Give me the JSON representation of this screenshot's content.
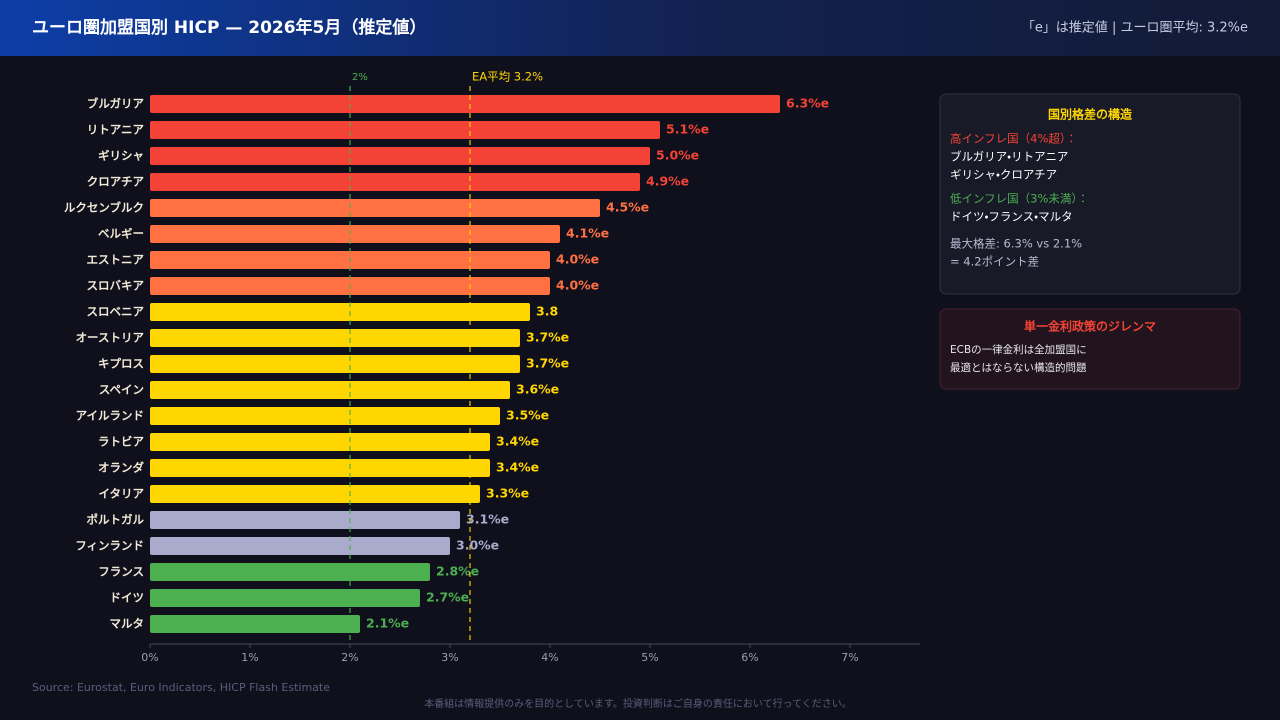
{
  "header": {
    "title": "ユーロ圏加盟国別 HICP — 2026年5月（推定値）",
    "note": "「e」は推定値 | ユーロ圏平均: 3.2%e"
  },
  "chart_data": {
    "type": "bar",
    "orientation": "horizontal",
    "categories": [
      "ブルガリア",
      "リトアニア",
      "ギリシャ",
      "クロアチア",
      "ルクセンブルク",
      "ベルギー",
      "エストニア",
      "スロバキア",
      "スロベニア",
      "オーストリア",
      "キプロス",
      "スペイン",
      "アイルランド",
      "ラトビア",
      "オランダ",
      "イタリア",
      "ポルトガル",
      "フィンランド",
      "フランス",
      "ドイツ",
      "マルタ"
    ],
    "values": [
      6.3,
      5.1,
      5.0,
      4.9,
      4.5,
      4.1,
      4.0,
      4.0,
      3.8,
      3.7,
      3.7,
      3.6,
      3.5,
      3.4,
      3.4,
      3.3,
      3.1,
      3.0,
      2.8,
      2.7,
      2.1
    ],
    "value_labels": [
      "6.3%e",
      "5.1%e",
      "5.0%e",
      "4.9%e",
      "4.5%e",
      "4.1%e",
      "4.0%e",
      "4.0%e",
      "3.8",
      "3.7%e",
      "3.7%e",
      "3.6%e",
      "3.5%e",
      "3.4%e",
      "3.4%e",
      "3.3%e",
      "3.1%e",
      "3.0%e",
      "2.8%e",
      "2.7%e",
      "2.1%e"
    ],
    "colors": [
      "#f44336",
      "#f44336",
      "#f44336",
      "#f44336",
      "#ff7043",
      "#ff7043",
      "#ff7043",
      "#ff7043",
      "#ffd600",
      "#ffd600",
      "#ffd600",
      "#ffd600",
      "#ffd600",
      "#ffd600",
      "#ffd600",
      "#ffd600",
      "#aaaacc",
      "#aaaacc",
      "#4caf50",
      "#4caf50",
      "#4caf50"
    ],
    "xlim": [
      0,
      7.7
    ],
    "xticks": [
      {
        "value": 0,
        "label": "0%"
      },
      {
        "value": 1,
        "label": "1%"
      },
      {
        "value": 2,
        "label": "2%"
      },
      {
        "value": 3,
        "label": "3%"
      },
      {
        "value": 4,
        "label": "4%"
      },
      {
        "value": 5,
        "label": "5%"
      },
      {
        "value": 6,
        "label": "6%"
      },
      {
        "value": 7,
        "label": "7%"
      }
    ],
    "reference_lines": [
      {
        "value": 2,
        "label": "2%",
        "color": "#4caf50"
      },
      {
        "value": 3.2,
        "label": "EA平均 3.2%",
        "color": "#ffd600"
      }
    ]
  },
  "panels": [
    {
      "title": "国別格差の構造",
      "high_heading": "高インフレ国（4%超）：",
      "high_lines": [
        "ブルガリア・リトアニア",
        "ギリシャ・クロアチア"
      ],
      "low_heading": "低インフレ国（3%未満）：",
      "low_lines": [
        "ドイツ・フランス・マルタ"
      ],
      "gap_lines": [
        "最大格差: 6.3% vs 2.1%",
        "= 4.2ポイント差"
      ]
    },
    {
      "title": "単一金利政策のジレンマ",
      "lines": [
        "ECBの一律金利は全加盟国に",
        "最適とはならない構造的問題"
      ]
    }
  ],
  "footer": {
    "source": "Source: Eurostat, Euro Indicators, HICP Flash Estimate",
    "disclaimer": "本番組は情報提供のみを目的としています。投資判断はご自身の責任において行ってください。"
  }
}
